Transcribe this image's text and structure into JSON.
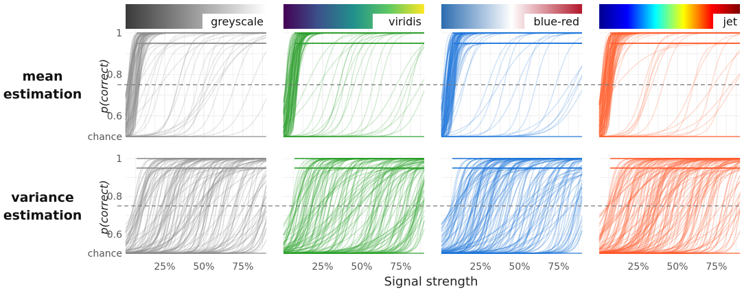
{
  "chart_data": {
    "type": "line",
    "xlabel": "Signal strength",
    "ylabel": "p(correct)",
    "x_ticks": [
      "25%",
      "50%",
      "75%"
    ],
    "x_tick_values": [
      0.25,
      0.5,
      0.75
    ],
    "xlim": [
      0,
      0.9
    ],
    "y_ticks": [
      "1",
      "0.8",
      "0.6",
      "chance"
    ],
    "y_tick_values": [
      1.0,
      0.8,
      0.6,
      0.5
    ],
    "ylim": [
      0.5,
      1.0
    ],
    "reference_line": 0.75,
    "grid": true,
    "columns": [
      {
        "colormap": "greyscale",
        "line_color": "#8c8c8c",
        "gradient": [
          "#3a3a3a",
          "#ffffff"
        ]
      },
      {
        "colormap": "viridis",
        "line_color": "#2ca02c",
        "gradient": [
          "#440154",
          "#3b528b",
          "#21918c",
          "#5ec962",
          "#fde725"
        ]
      },
      {
        "colormap": "blue-red",
        "line_color": "#1f77d9",
        "gradient": [
          "#2b6cb0",
          "#ffffff",
          "#b2182b"
        ]
      },
      {
        "colormap": "jet",
        "line_color": "#ff5a2b",
        "gradient": [
          "#00008f",
          "#0000ff",
          "#00ffff",
          "#ffff00",
          "#ff0000",
          "#800000"
        ]
      }
    ],
    "rows": [
      {
        "task": [
          "mean",
          "estimation"
        ]
      },
      {
        "task": [
          "variance",
          "estimation"
        ]
      }
    ],
    "series_description": "Psychometric curves per participant: p(correct) rising from chance to 1 with signal strength; mean estimation curves rise steeply near low signal, variance estimation curves are spread across the signal range."
  }
}
